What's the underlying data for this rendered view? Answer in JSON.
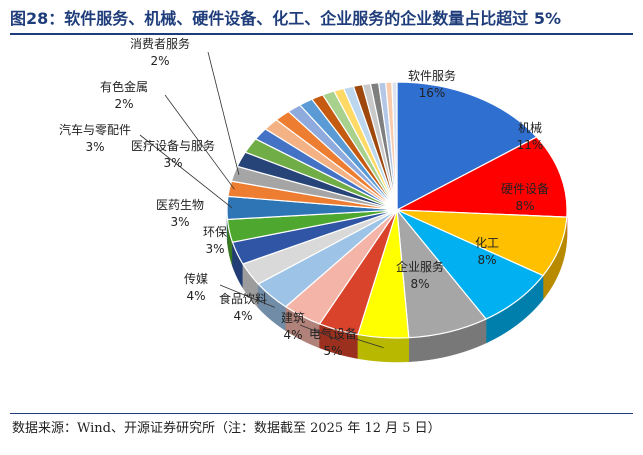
{
  "title": "图28：软件服务、机械、硬件设备、化工、企业服务的企业数量占比超过 5%",
  "source": "数据来源：Wind、开源证券研究所（注：数据截至 2025 年 12 月 5 日）",
  "chart_data": {
    "type": "pie",
    "style": "3d",
    "title": "图28：软件服务、机械、硬件设备、化工、企业服务的企业数量占比超过 5%",
    "slices": [
      {
        "label": "软件服务",
        "value_label": "16%",
        "value": 16,
        "color": "#2e6fd0"
      },
      {
        "label": "机械",
        "value_label": "11%",
        "value": 11,
        "color": "#ff0000"
      },
      {
        "label": "硬件设备",
        "value_label": "8%",
        "value": 8,
        "color": "#ffc000"
      },
      {
        "label": "化工",
        "value_label": "8%",
        "value": 8,
        "color": "#00b0f0"
      },
      {
        "label": "企业服务",
        "value_label": "8%",
        "value": 8,
        "color": "#a6a6a6"
      },
      {
        "label": "电气设备",
        "value_label": "5%",
        "value": 5,
        "color": "#ffff00"
      },
      {
        "label": "建筑",
        "value_label": "4%",
        "value": 4,
        "color": "#d9432b"
      },
      {
        "label": "食品饮料",
        "value_label": "4%",
        "value": 4,
        "color": "#f4b5a8"
      },
      {
        "label": "传媒",
        "value_label": "4%",
        "value": 4,
        "color": "#9dc3e6"
      },
      {
        "label": "环保",
        "value_label": "3%",
        "value": 3,
        "color": "#d9d9d9"
      },
      {
        "label": "医药生物",
        "value_label": "3%",
        "value": 3,
        "color": "#2f55a4"
      },
      {
        "label": "医疗设备与服务",
        "value_label": "3%",
        "value": 3,
        "color": "#4ea72e"
      },
      {
        "label": "汽车与零配件",
        "value_label": "3%",
        "value": 3,
        "color": "#2e75b6"
      },
      {
        "label": "有色金属",
        "value_label": "2%",
        "value": 2,
        "color": "#ed7d31"
      },
      {
        "label": "消费者服务",
        "value_label": "2%",
        "value": 2,
        "color": "#a5a5a5"
      },
      {
        "value": 2,
        "color": "#264478"
      },
      {
        "value": 2,
        "color": "#70ad47"
      },
      {
        "value": 1.6,
        "color": "#4472c4"
      },
      {
        "value": 1.6,
        "color": "#f4b183"
      },
      {
        "value": 1.6,
        "color": "#ed7d31"
      },
      {
        "value": 1.4,
        "color": "#8faadc"
      },
      {
        "value": 1.4,
        "color": "#5b9bd5"
      },
      {
        "value": 1.2,
        "color": "#c55a11"
      },
      {
        "value": 1.2,
        "color": "#a9d18e"
      },
      {
        "value": 1,
        "color": "#ffd966"
      },
      {
        "value": 1,
        "color": "#bdd7ee"
      },
      {
        "value": 0.9,
        "color": "#9e480e"
      },
      {
        "value": 0.8,
        "color": "#c9c9c9"
      },
      {
        "value": 0.8,
        "color": "#7f7f7f"
      },
      {
        "value": 0.7,
        "color": "#b4c7e7"
      },
      {
        "value": 0.6,
        "color": "#f8cbad"
      },
      {
        "value": 0.5,
        "color": "#dbe3f1"
      }
    ]
  }
}
